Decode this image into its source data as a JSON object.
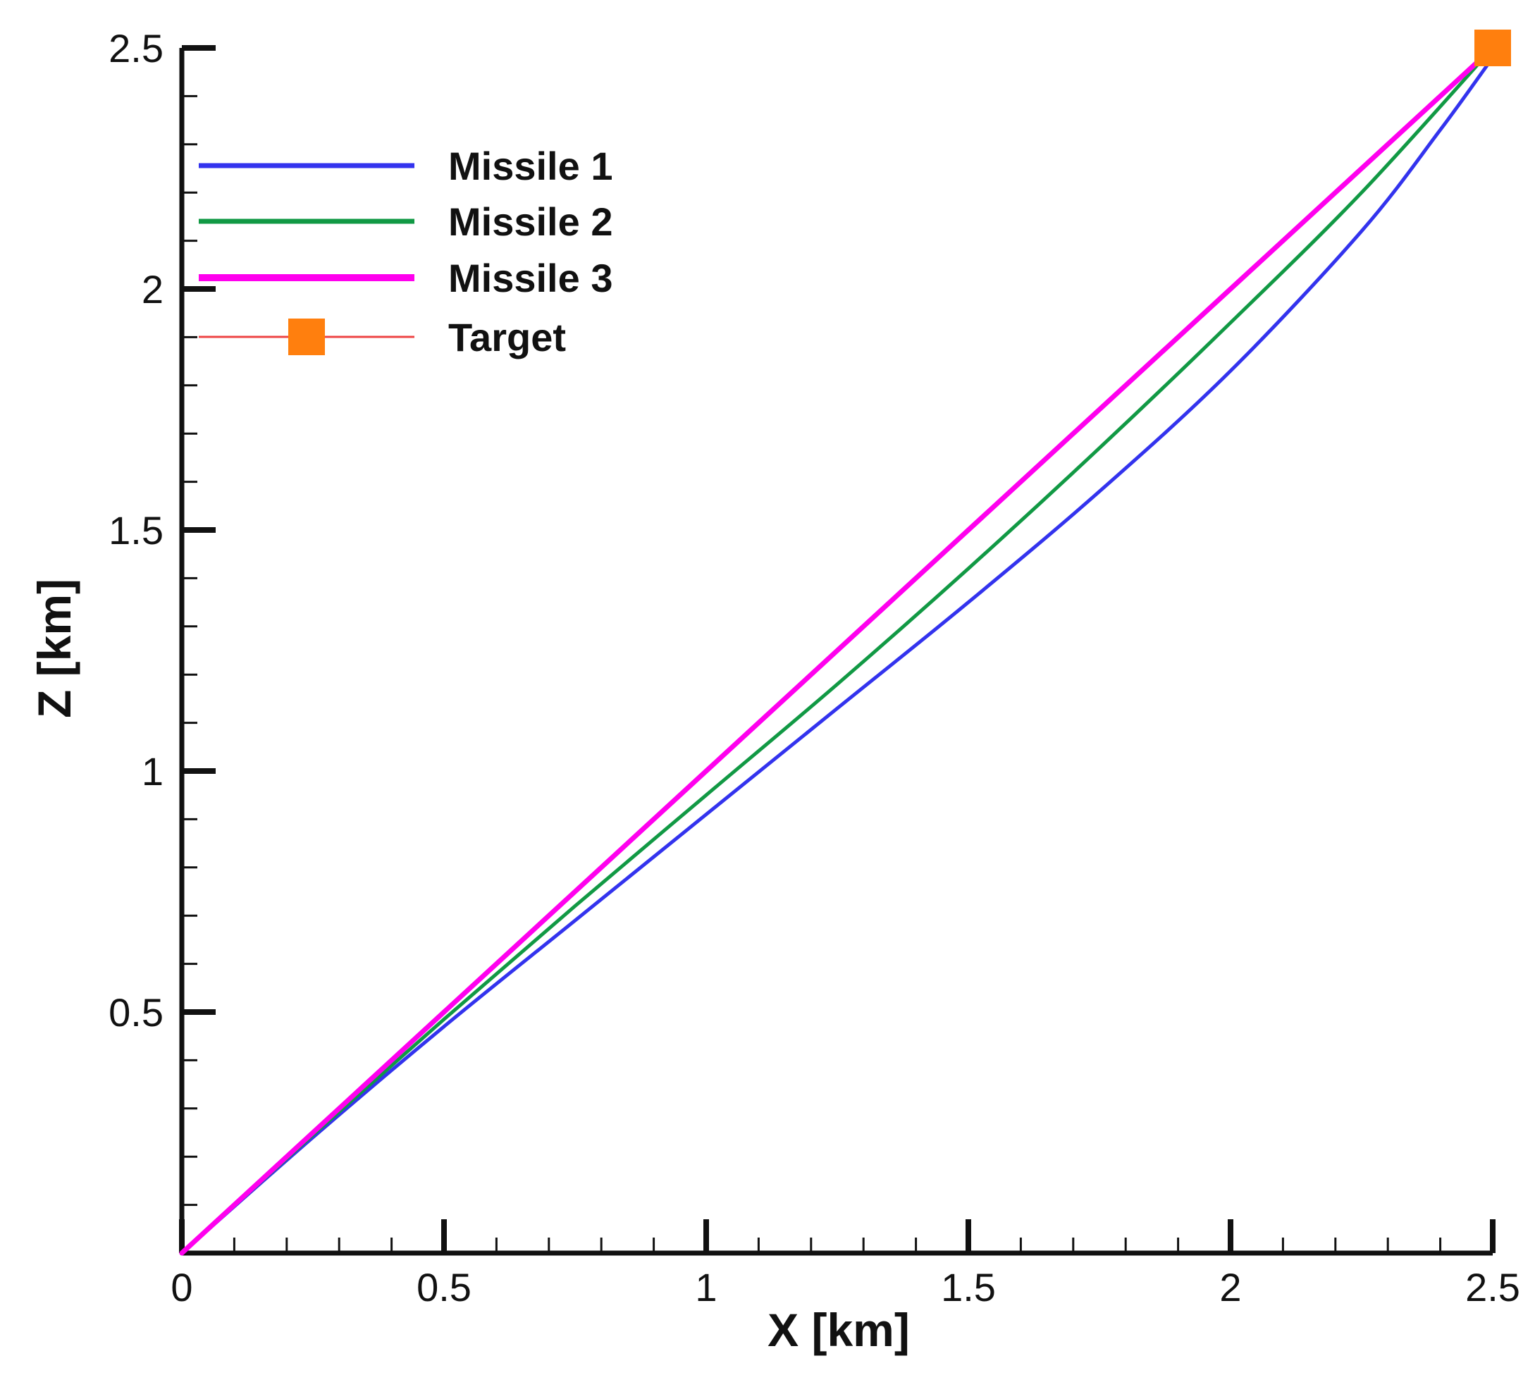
{
  "chart_data": {
    "type": "line",
    "title": "",
    "xlabel": "X [km]",
    "ylabel": "Z [km]",
    "xlim": [
      0,
      2.5
    ],
    "ylim": [
      0,
      2.5
    ],
    "x_ticks": [
      "0",
      "0.5",
      "1",
      "1.5",
      "2",
      "2.5"
    ],
    "y_ticks": [
      "0.5",
      "1",
      "1.5",
      "2",
      "2.5"
    ],
    "grid": false,
    "legend_position": "top-left",
    "series": [
      {
        "name": "Missile 1",
        "color": "#3333ee",
        "x": [
          0,
          0.25,
          0.5,
          0.75,
          1.0,
          1.25,
          1.5,
          1.75,
          2.0,
          2.25,
          2.4,
          2.5
        ],
        "y": [
          0,
          0.24,
          0.47,
          0.69,
          0.91,
          1.13,
          1.35,
          1.58,
          1.83,
          2.12,
          2.33,
          2.48
        ]
      },
      {
        "name": "Missile 2",
        "color": "#119944",
        "x": [
          0,
          0.25,
          0.5,
          0.75,
          1.0,
          1.25,
          1.5,
          1.75,
          2.0,
          2.25,
          2.5
        ],
        "y": [
          0,
          0.245,
          0.485,
          0.72,
          0.95,
          1.18,
          1.42,
          1.67,
          1.93,
          2.2,
          2.5
        ]
      },
      {
        "name": "Missile 3",
        "color": "#ff00ee",
        "x": [
          0,
          0.5,
          1.0,
          1.5,
          2.0,
          2.5
        ],
        "y": [
          0,
          0.5,
          1.0,
          1.5,
          2.0,
          2.5
        ]
      },
      {
        "name": "Target",
        "color": "#ee4444",
        "marker": "square",
        "marker_color": "#ff7f0e",
        "x": [
          2.5
        ],
        "y": [
          2.5
        ]
      }
    ]
  }
}
